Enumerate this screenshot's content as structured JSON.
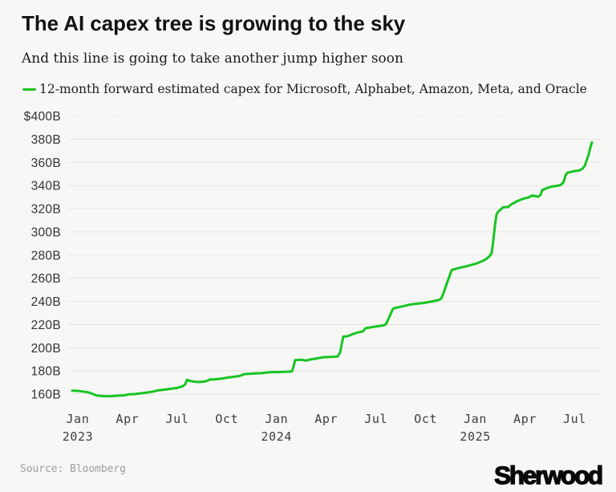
{
  "header": {
    "title": "The AI capex tree is growing to the sky",
    "subtitle": "And this line is going to take another jump higher soon"
  },
  "legend": {
    "label": "12-month forward estimated capex for Microsoft, Alphabet, Amazon, Meta, and Oracle",
    "swatch_color": "#17c423"
  },
  "footer": {
    "source": "Source: Bloomberg",
    "logo": "Sherwood"
  },
  "colors": {
    "background": "#f7f7f5",
    "line": "#17c423",
    "grid": "#e4e4e2",
    "axis_text": "#333333",
    "source_text": "#9d9d9d"
  },
  "chart_data": {
    "type": "line",
    "title": "The AI capex tree is growing to the sky",
    "series_name": "12-month forward estimated capex for Microsoft, Alphabet, Amazon, Meta, and Oracle",
    "unit": "billion USD",
    "ylim": [
      160,
      400
    ],
    "y_ticks": [
      "$400B",
      "380B",
      "360B",
      "340B",
      "320B",
      "300B",
      "280B",
      "260B",
      "240B",
      "220B",
      "200B",
      "180B",
      "160B"
    ],
    "y_tick_values": [
      400,
      380,
      360,
      340,
      320,
      300,
      280,
      260,
      240,
      220,
      200,
      180,
      160
    ],
    "x_ticks": [
      {
        "t": 0,
        "label": "Jan",
        "year": "2023"
      },
      {
        "t": 3,
        "label": "Apr"
      },
      {
        "t": 6,
        "label": "Jul"
      },
      {
        "t": 9,
        "label": "Oct"
      },
      {
        "t": 12,
        "label": "Jan",
        "year": "2024"
      },
      {
        "t": 15,
        "label": "Apr"
      },
      {
        "t": 18,
        "label": "Jul"
      },
      {
        "t": 21,
        "label": "Oct"
      },
      {
        "t": 24,
        "label": "Jan",
        "year": "2025"
      },
      {
        "t": 27,
        "label": "Apr"
      },
      {
        "t": 30,
        "label": "Jul"
      }
    ],
    "x_unit": "months since Jan 2023",
    "grid": true,
    "legend_position": "top-left",
    "points": [
      [
        -0.34,
        163.0
      ],
      [
        0.0,
        162.8
      ],
      [
        0.24,
        162.3
      ],
      [
        0.63,
        161.5
      ],
      [
        0.92,
        160.1
      ],
      [
        1.11,
        158.9
      ],
      [
        1.36,
        158.4
      ],
      [
        1.74,
        158.1
      ],
      [
        2.08,
        158.3
      ],
      [
        2.42,
        158.6
      ],
      [
        2.81,
        158.9
      ],
      [
        3.05,
        159.7
      ],
      [
        3.44,
        160.0
      ],
      [
        3.83,
        160.7
      ],
      [
        4.16,
        161.3
      ],
      [
        4.55,
        162.2
      ],
      [
        4.89,
        163.3
      ],
      [
        5.28,
        163.9
      ],
      [
        5.62,
        164.6
      ],
      [
        6.0,
        165.3
      ],
      [
        6.34,
        166.8
      ],
      [
        6.49,
        168.5
      ],
      [
        6.59,
        172.3
      ],
      [
        6.73,
        171.6
      ],
      [
        6.88,
        171.0
      ],
      [
        7.26,
        170.4
      ],
      [
        7.65,
        170.8
      ],
      [
        7.85,
        171.8
      ],
      [
        7.94,
        172.5
      ],
      [
        8.18,
        172.7
      ],
      [
        8.47,
        173.0
      ],
      [
        8.77,
        173.6
      ],
      [
        9.06,
        174.3
      ],
      [
        9.39,
        174.9
      ],
      [
        9.73,
        175.5
      ],
      [
        9.93,
        176.5
      ],
      [
        10.02,
        177.2
      ],
      [
        10.36,
        177.5
      ],
      [
        10.7,
        177.8
      ],
      [
        11.04,
        178.0
      ],
      [
        11.38,
        178.5
      ],
      [
        11.67,
        179.0
      ],
      [
        12.01,
        179.0
      ],
      [
        12.35,
        179.1
      ],
      [
        12.74,
        179.4
      ],
      [
        12.93,
        179.6
      ],
      [
        13.03,
        184.0
      ],
      [
        13.12,
        189.2
      ],
      [
        13.37,
        189.5
      ],
      [
        13.56,
        189.6
      ],
      [
        13.75,
        188.9
      ],
      [
        14.0,
        189.7
      ],
      [
        14.29,
        190.5
      ],
      [
        14.58,
        191.2
      ],
      [
        14.82,
        191.8
      ],
      [
        15.16,
        192.0
      ],
      [
        15.45,
        192.2
      ],
      [
        15.69,
        192.5
      ],
      [
        15.84,
        196.0
      ],
      [
        15.93,
        203.0
      ],
      [
        16.03,
        209.6
      ],
      [
        16.27,
        209.9
      ],
      [
        16.61,
        211.8
      ],
      [
        16.9,
        213.2
      ],
      [
        17.19,
        213.9
      ],
      [
        17.38,
        216.9
      ],
      [
        17.63,
        217.4
      ],
      [
        17.82,
        218.0
      ],
      [
        18.11,
        218.5
      ],
      [
        18.45,
        219.3
      ],
      [
        18.6,
        220.2
      ],
      [
        18.79,
        226.1
      ],
      [
        19.03,
        233.7
      ],
      [
        19.23,
        234.6
      ],
      [
        19.47,
        235.3
      ],
      [
        19.81,
        236.4
      ],
      [
        20.15,
        237.5
      ],
      [
        20.48,
        238.0
      ],
      [
        20.87,
        238.6
      ],
      [
        21.31,
        239.7
      ],
      [
        21.74,
        241.0
      ],
      [
        21.94,
        242.3
      ],
      [
        22.08,
        247.3
      ],
      [
        22.32,
        257.0
      ],
      [
        22.57,
        267.0
      ],
      [
        22.95,
        268.6
      ],
      [
        23.49,
        270.4
      ],
      [
        24.02,
        272.5
      ],
      [
        24.46,
        275.0
      ],
      [
        24.7,
        277.0
      ],
      [
        24.89,
        279.5
      ],
      [
        24.99,
        282.0
      ],
      [
        25.08,
        292.0
      ],
      [
        25.18,
        305.0
      ],
      [
        25.28,
        315.0
      ],
      [
        25.38,
        317.5
      ],
      [
        25.52,
        319.1
      ],
      [
        25.67,
        321.2
      ],
      [
        26.0,
        321.6
      ],
      [
        26.15,
        323.5
      ],
      [
        26.34,
        325.0
      ],
      [
        26.54,
        326.6
      ],
      [
        26.88,
        328.5
      ],
      [
        27.22,
        329.8
      ],
      [
        27.41,
        331.3
      ],
      [
        27.55,
        331.1
      ],
      [
        27.8,
        330.3
      ],
      [
        27.94,
        332.0
      ],
      [
        28.04,
        336.1
      ],
      [
        28.23,
        337.2
      ],
      [
        28.38,
        338.1
      ],
      [
        28.62,
        339.1
      ],
      [
        28.91,
        339.7
      ],
      [
        29.15,
        340.4
      ],
      [
        29.3,
        342.3
      ],
      [
        29.39,
        345.7
      ],
      [
        29.44,
        348.6
      ],
      [
        29.54,
        350.8
      ],
      [
        29.73,
        351.6
      ],
      [
        29.98,
        352.4
      ],
      [
        30.27,
        353.0
      ],
      [
        30.41,
        354.0
      ],
      [
        30.51,
        355.2
      ],
      [
        30.61,
        357.0
      ],
      [
        30.7,
        361.0
      ],
      [
        30.85,
        367.0
      ],
      [
        30.94,
        372.5
      ],
      [
        31.04,
        377.3
      ]
    ]
  }
}
